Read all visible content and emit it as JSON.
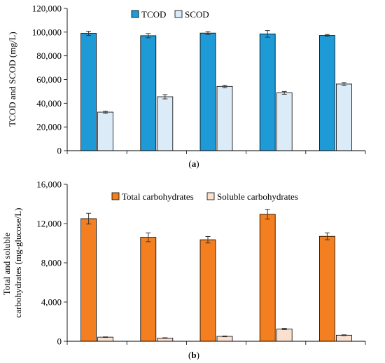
{
  "colors": {
    "tcod": "#1e9ad6",
    "scod": "#dcebf8",
    "total_carb": "#f47f20",
    "soluble_carb": "#fbe0cf",
    "bar_stroke": "#000000",
    "error_bar": "#333333"
  },
  "chart_data": [
    {
      "type": "bar",
      "caption_open": "(",
      "caption_letter": "a",
      "caption_close": ")",
      "ylabel": "TCOD and SCOD (mg/L)",
      "xlabel": "",
      "categories": [
        "",
        "",
        "",
        "",
        ""
      ],
      "ylim": [
        0,
        120000
      ],
      "yticks": [
        0,
        20000,
        40000,
        60000,
        80000,
        100000,
        120000
      ],
      "ytick_labels": [
        "0",
        "20,000",
        "40,000",
        "60,000",
        "80,000",
        "100,000",
        "120,000"
      ],
      "legend_position": "top-center",
      "grid": false,
      "series": [
        {
          "name": "TCOD",
          "color": "#1e9ad6",
          "values": [
            99000,
            97000,
            99200,
            98500,
            97200
          ],
          "errors": [
            1800,
            1800,
            1200,
            2800,
            800
          ]
        },
        {
          "name": "SCOD",
          "color": "#dcebf8",
          "values": [
            32500,
            45500,
            54200,
            48800,
            56200
          ],
          "errors": [
            800,
            1800,
            1000,
            1200,
            1200
          ]
        }
      ]
    },
    {
      "type": "bar",
      "caption_open": "(",
      "caption_letter": "b",
      "caption_close": ")",
      "ylabel": "Total and soluble carbohydrates (mg-glucose/L)",
      "ylabel_lines": [
        "Total and soluble",
        "carbohydrates (mg-glucose/L)"
      ],
      "xlabel": "",
      "categories": [
        "",
        "",
        "",
        "",
        ""
      ],
      "ylim": [
        0,
        16000
      ],
      "yticks": [
        0,
        4000,
        8000,
        12000,
        16000
      ],
      "ytick_labels": [
        "0",
        "4,000",
        "8,000",
        "12,000",
        "16,000"
      ],
      "legend_position": "top-center",
      "grid": false,
      "series": [
        {
          "name": "Total carbohydrates",
          "color": "#f47f20",
          "values": [
            12500,
            10600,
            10350,
            12950,
            10700
          ],
          "errors": [
            550,
            450,
            330,
            500,
            350
          ]
        },
        {
          "name": "Soluble carbohydrates",
          "color": "#fbe0cf",
          "values": [
            420,
            330,
            500,
            1250,
            620
          ],
          "errors": [
            30,
            30,
            40,
            60,
            40
          ]
        }
      ]
    }
  ]
}
